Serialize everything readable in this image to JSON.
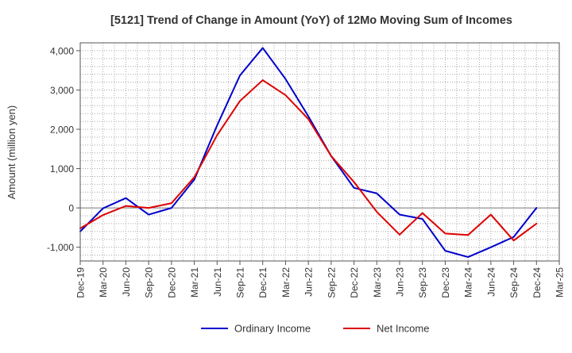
{
  "chart_data": {
    "type": "line",
    "title": "[5121]  Trend of Change in Amount (YoY) of 12Mo Moving Sum of Incomes",
    "xlabel": "",
    "ylabel": "Amount (million yen)",
    "ylim": [
      -1350,
      4200
    ],
    "yticks": [
      -1000,
      0,
      1000,
      2000,
      3000,
      4000
    ],
    "ytick_labels": [
      "-1,000",
      "0",
      "1,000",
      "2,000",
      "3,000",
      "4,000"
    ],
    "categories": [
      "Dec-19",
      "Mar-20",
      "Jun-20",
      "Sep-20",
      "Dec-20",
      "Mar-21",
      "Jun-21",
      "Sep-21",
      "Dec-21",
      "Mar-22",
      "Jun-22",
      "Sep-22",
      "Dec-22",
      "Mar-23",
      "Jun-23",
      "Sep-23",
      "Dec-23",
      "Mar-24",
      "Jun-24",
      "Sep-24",
      "Dec-24",
      "Mar-25"
    ],
    "grid": true,
    "legend_position": "bottom-center",
    "series": [
      {
        "name": "Ordinary Income",
        "color": "#0000cc",
        "values": [
          -600,
          -10,
          250,
          -170,
          0,
          720,
          2100,
          3370,
          4070,
          3280,
          2330,
          1320,
          510,
          370,
          -170,
          -280,
          -1090,
          -1250,
          -1000,
          -740,
          0,
          null
        ]
      },
      {
        "name": "Net Income",
        "color": "#dd0000",
        "values": [
          -520,
          -180,
          50,
          0,
          120,
          780,
          1850,
          2720,
          3250,
          2870,
          2260,
          1320,
          660,
          -100,
          -680,
          -130,
          -650,
          -690,
          -170,
          -830,
          -400,
          null
        ]
      }
    ]
  }
}
